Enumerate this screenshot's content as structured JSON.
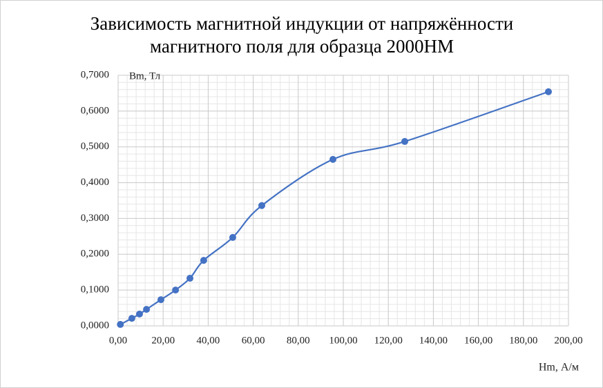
{
  "chart_data": {
    "type": "scatter_smooth",
    "title": [
      "Зависимость магнитной индукции от напряжённости",
      "магнитного поля для образца 2000НМ"
    ],
    "x_label": "Hm, А/м",
    "y_label": "Bm, Тл",
    "series": [
      {
        "color": "#4472c4",
        "x": [
          1.0,
          6.1,
          9.5,
          12.6,
          19.0,
          25.5,
          31.9,
          38.0,
          50.9,
          63.8,
          95.4,
          127.3,
          191.1
        ],
        "values": [
          0.004,
          0.021,
          0.033,
          0.046,
          0.073,
          0.1,
          0.133,
          0.183,
          0.247,
          0.336,
          0.465,
          0.515,
          0.654
        ]
      }
    ],
    "xlim": [
      0,
      200
    ],
    "xticks": [
      {
        "value": 0,
        "label": "0,00"
      },
      {
        "value": 20,
        "label": "20,00"
      },
      {
        "value": 40,
        "label": "40,00"
      },
      {
        "value": 60,
        "label": "60,00"
      },
      {
        "value": 80,
        "label": "80,00"
      },
      {
        "value": 100,
        "label": "100,00"
      },
      {
        "value": 120,
        "label": "120,00"
      },
      {
        "value": 140,
        "label": "140,00"
      },
      {
        "value": 160,
        "label": "160,00"
      },
      {
        "value": 180,
        "label": "180,00"
      },
      {
        "value": 200,
        "label": "200,00"
      }
    ],
    "ylim": [
      0,
      0.7
    ],
    "yticks": [
      {
        "value": 0,
        "label": "0,0000"
      },
      {
        "value": 0.1,
        "label": "0,1000"
      },
      {
        "value": 0.2,
        "label": "0,2000"
      },
      {
        "value": 0.3,
        "label": "0,3000"
      },
      {
        "value": 0.4,
        "label": "0,4000"
      },
      {
        "value": 0.5,
        "label": "0,5000"
      },
      {
        "value": 0.6,
        "label": "0,6000"
      },
      {
        "value": 0.7,
        "label": "0,7000"
      }
    ],
    "grid": true
  }
}
